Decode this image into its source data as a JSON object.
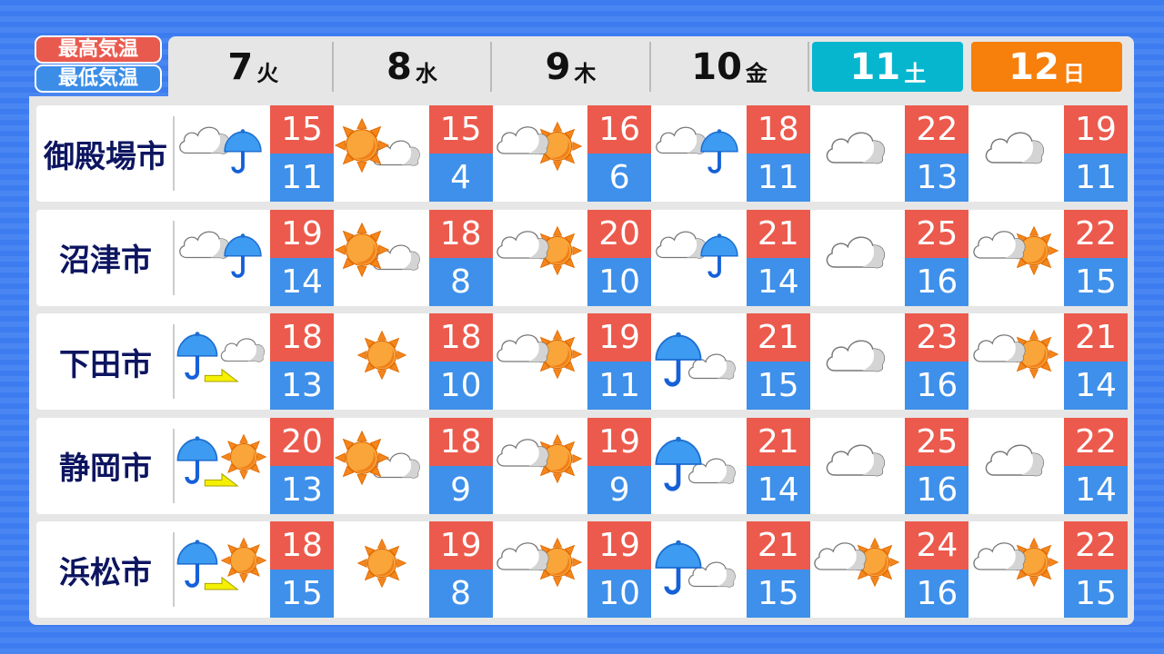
{
  "legend": {
    "high": "最高気温",
    "low": "最低気温"
  },
  "colors": {
    "high": "#ec5a4d",
    "low": "#3e90ea",
    "saturday": "#06b6cf",
    "sunday": "#f77f0c",
    "city": "#0d1560"
  },
  "days": [
    {
      "num": "7",
      "wd": "火"
    },
    {
      "num": "8",
      "wd": "水"
    },
    {
      "num": "9",
      "wd": "木"
    },
    {
      "num": "10",
      "wd": "金"
    },
    {
      "num": "11",
      "wd": "土"
    },
    {
      "num": "12",
      "wd": "日"
    }
  ],
  "cities": [
    {
      "name": "御殿場市",
      "f": [
        {
          "icon": "cloud-then-rain",
          "hi": "15",
          "lo": "11"
        },
        {
          "icon": "sun-then-cloud",
          "hi": "15",
          "lo": "4"
        },
        {
          "icon": "cloud-then-sun",
          "hi": "16",
          "lo": "6"
        },
        {
          "icon": "cloud-then-rain",
          "hi": "18",
          "lo": "11"
        },
        {
          "icon": "cloud",
          "hi": "22",
          "lo": "13"
        },
        {
          "icon": "cloud",
          "hi": "19",
          "lo": "11"
        }
      ]
    },
    {
      "name": "沼津市",
      "f": [
        {
          "icon": "cloud-then-rain",
          "hi": "19",
          "lo": "14"
        },
        {
          "icon": "sun-then-cloud",
          "hi": "18",
          "lo": "8"
        },
        {
          "icon": "cloud-then-sun",
          "hi": "20",
          "lo": "10"
        },
        {
          "icon": "cloud-then-rain",
          "hi": "21",
          "lo": "14"
        },
        {
          "icon": "cloud",
          "hi": "25",
          "lo": "16"
        },
        {
          "icon": "cloud-then-sun",
          "hi": "22",
          "lo": "15"
        }
      ]
    },
    {
      "name": "下田市",
      "f": [
        {
          "icon": "rain-later-cloud",
          "hi": "18",
          "lo": "13"
        },
        {
          "icon": "sun",
          "hi": "18",
          "lo": "10"
        },
        {
          "icon": "cloud-then-sun",
          "hi": "19",
          "lo": "11"
        },
        {
          "icon": "rain-then-cloud",
          "hi": "21",
          "lo": "15"
        },
        {
          "icon": "cloud",
          "hi": "23",
          "lo": "16"
        },
        {
          "icon": "cloud-then-sun",
          "hi": "21",
          "lo": "14"
        }
      ]
    },
    {
      "name": "静岡市",
      "f": [
        {
          "icon": "rain-later-sun",
          "hi": "20",
          "lo": "13"
        },
        {
          "icon": "sun-then-cloud",
          "hi": "18",
          "lo": "9"
        },
        {
          "icon": "cloud-then-sun",
          "hi": "19",
          "lo": "9"
        },
        {
          "icon": "rain-then-cloud",
          "hi": "21",
          "lo": "14"
        },
        {
          "icon": "cloud",
          "hi": "25",
          "lo": "16"
        },
        {
          "icon": "cloud",
          "hi": "22",
          "lo": "14"
        }
      ]
    },
    {
      "name": "浜松市",
      "f": [
        {
          "icon": "rain-later-sun",
          "hi": "18",
          "lo": "15"
        },
        {
          "icon": "sun",
          "hi": "19",
          "lo": "8"
        },
        {
          "icon": "cloud-then-sun",
          "hi": "19",
          "lo": "10"
        },
        {
          "icon": "rain-then-cloud",
          "hi": "21",
          "lo": "15"
        },
        {
          "icon": "cloud-then-sun",
          "hi": "24",
          "lo": "16"
        },
        {
          "icon": "cloud-then-sun",
          "hi": "22",
          "lo": "15"
        }
      ]
    }
  ]
}
